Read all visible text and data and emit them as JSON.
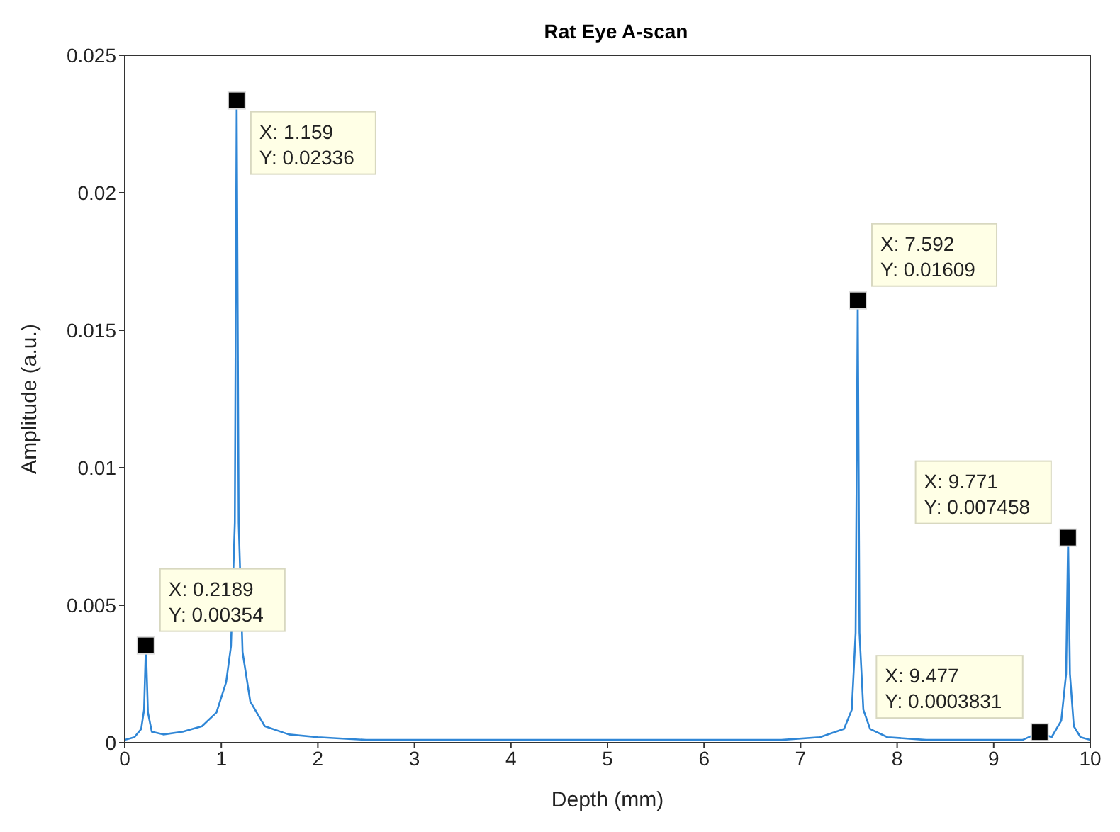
{
  "chart_data": {
    "type": "line",
    "title": "Rat Eye A-scan",
    "xlabel": "Depth (mm)",
    "ylabel": "Amplitude (a.u.)",
    "xlim": [
      0,
      10
    ],
    "xticks": [
      0,
      1,
      2,
      3,
      4,
      5,
      6,
      7,
      8,
      9,
      10
    ],
    "ylim": [
      0,
      0.025
    ],
    "yticks": [
      0,
      0.005,
      0.01,
      0.015,
      0.02,
      0.025
    ],
    "legend": false,
    "marker": "none",
    "line_style": "solid",
    "series": [
      {
        "color": "#2f86d6",
        "x": [
          0,
          0.1,
          0.17,
          0.2,
          0.2189,
          0.24,
          0.28,
          0.4,
          0.6,
          0.8,
          0.95,
          1.05,
          1.1,
          1.14,
          1.159,
          1.18,
          1.22,
          1.3,
          1.45,
          1.7,
          2,
          2.5,
          3,
          4,
          5,
          6,
          6.8,
          7.2,
          7.45,
          7.53,
          7.57,
          7.592,
          7.61,
          7.65,
          7.72,
          7.9,
          8.3,
          9,
          9.3,
          9.477,
          9.6,
          9.7,
          9.75,
          9.771,
          9.79,
          9.83,
          9.9,
          10
        ],
        "values": [
          0.0001,
          0.0002,
          0.0005,
          0.0012,
          0.00354,
          0.0011,
          0.0004,
          0.0003,
          0.0004,
          0.0006,
          0.0011,
          0.0022,
          0.0035,
          0.008,
          0.02336,
          0.008,
          0.0033,
          0.0015,
          0.0006,
          0.0003,
          0.0002,
          0.0001,
          0.0001,
          0.0001,
          0.0001,
          0.0001,
          0.0001,
          0.0002,
          0.0005,
          0.0012,
          0.004,
          0.01609,
          0.004,
          0.0012,
          0.0005,
          0.0002,
          0.0001,
          0.0001,
          0.0001,
          0.0003831,
          0.0002,
          0.0008,
          0.0025,
          0.007458,
          0.0025,
          0.0006,
          0.0002,
          0.0001
        ]
      }
    ],
    "annotations": [
      {
        "text": "X: 0.2189\nY: 0.00354",
        "x": 0.2189,
        "y": 0.00354
      },
      {
        "text": "X: 1.159\nY: 0.02336",
        "x": 1.159,
        "y": 0.02336
      },
      {
        "text": "X: 7.592\nY: 0.01609",
        "x": 7.592,
        "y": 0.01609
      },
      {
        "text": "X: 9.477\nY: 0.0003831",
        "x": 9.477,
        "y": 0.0003831
      },
      {
        "text": "X: 9.771\nY: 0.007458",
        "x": 9.771,
        "y": 0.007458
      }
    ]
  }
}
